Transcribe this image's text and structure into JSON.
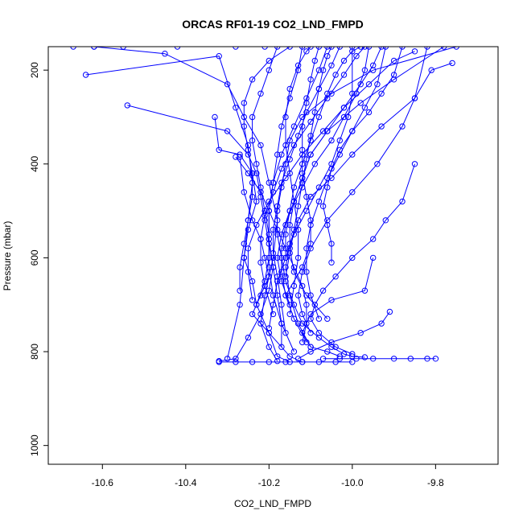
{
  "chart_data": {
    "type": "line",
    "title": "ORCAS RF01-19 CO2_LND_FMPD",
    "xlabel": "CO2_LND_FMPD",
    "ylabel": "Pressure (mbar)",
    "xlim": [
      -10.73,
      -9.65
    ],
    "ylim": [
      1040,
      150
    ],
    "y_axis_inverted": true,
    "x_ticks": [
      -10.6,
      -10.4,
      -10.2,
      -10.0,
      -9.8
    ],
    "x_tick_labels": [
      "-10.6",
      "-10.4",
      "-10.2",
      "-10.0",
      "-9.8"
    ],
    "y_ticks": [
      200,
      400,
      600,
      800,
      1000
    ],
    "y_tick_labels": [
      "200",
      "400",
      "600",
      "800",
      "1000"
    ],
    "marker": "open-circle",
    "grid": false,
    "legend": "none",
    "series_color": "#0000ff",
    "series": [
      {
        "x": [
          -10.67,
          -10.62,
          -10.55,
          -10.42,
          -10.28,
          -10.21
        ],
        "y": [
          150,
          150,
          150,
          150,
          150,
          150
        ]
      },
      {
        "x": [
          -10.62,
          -10.45,
          -10.3,
          -10.26,
          -10.22,
          -10.2,
          -10.18,
          -10.19,
          -10.21,
          -10.22,
          -10.2,
          -10.18
        ],
        "y": [
          150,
          165,
          230,
          300,
          360,
          440,
          520,
          600,
          680,
          740,
          790,
          820
        ]
      },
      {
        "x": [
          -10.64,
          -10.32,
          -10.28,
          -10.25,
          -10.24,
          -10.25,
          -10.26,
          -10.27,
          -10.3
        ],
        "y": [
          210,
          170,
          280,
          360,
          440,
          520,
          600,
          700,
          815
        ]
      },
      {
        "x": [
          -10.54,
          -10.3,
          -10.25,
          -10.23,
          -10.22,
          -10.21,
          -10.2,
          -10.19,
          -10.2,
          -10.22,
          -10.25,
          -10.28,
          -10.32
        ],
        "y": [
          275,
          330,
          380,
          420,
          470,
          520,
          570,
          620,
          670,
          720,
          770,
          815,
          820
        ]
      },
      {
        "x": [
          -10.33,
          -10.32,
          -10.27,
          -10.24,
          -10.23,
          -10.25,
          -10.26,
          -10.24,
          -10.23,
          -10.2,
          -10.18,
          -10.15
        ],
        "y": [
          300,
          370,
          380,
          420,
          480,
          540,
          600,
          650,
          700,
          760,
          810,
          822
        ]
      },
      {
        "x": [
          -10.27,
          -10.26,
          -10.24,
          -10.22,
          -10.21,
          -10.2,
          -10.22,
          -10.24,
          -10.2,
          -10.15,
          -10.12
        ],
        "y": [
          385,
          460,
          520,
          560,
          600,
          640,
          680,
          720,
          760,
          810,
          822
        ]
      },
      {
        "x": [
          -9.75,
          -9.95,
          -10.05,
          -10.12,
          -10.15,
          -10.16,
          -10.17,
          -10.18,
          -10.18,
          -10.17,
          -10.16,
          -10.14,
          -10.12,
          -10.08,
          -10.05,
          -10.02,
          -10.0,
          -9.97
        ],
        "y": [
          150,
          200,
          250,
          300,
          350,
          400,
          450,
          500,
          550,
          600,
          650,
          700,
          740,
          770,
          790,
          805,
          810,
          812
        ]
      },
      {
        "x": [
          -9.78,
          -9.9,
          -9.98,
          -10.06,
          -10.1,
          -10.12,
          -10.14,
          -10.16,
          -10.17,
          -10.17,
          -10.16,
          -10.14,
          -10.11
        ],
        "y": [
          150,
          220,
          270,
          330,
          380,
          430,
          480,
          530,
          580,
          630,
          680,
          730,
          780
        ]
      },
      {
        "x": [
          -9.82,
          -9.85,
          -9.93,
          -10.0,
          -10.05,
          -10.1,
          -10.13,
          -10.15,
          -10.16,
          -10.15,
          -10.13,
          -10.1
        ],
        "y": [
          150,
          260,
          320,
          380,
          430,
          470,
          520,
          570,
          620,
          680,
          740,
          790
        ]
      },
      {
        "x": [
          -9.85,
          -9.9,
          -9.96,
          -10.02,
          -10.06,
          -10.1,
          -10.12,
          -10.14,
          -10.15,
          -10.15,
          -10.14,
          -10.11,
          -10.06
        ],
        "y": [
          160,
          180,
          230,
          280,
          330,
          380,
          430,
          480,
          530,
          580,
          630,
          680,
          730
        ]
      },
      {
        "x": [
          -9.76,
          -9.81,
          -9.85,
          -9.88,
          -9.94,
          -10.0,
          -10.06,
          -10.1,
          -10.12,
          -10.13,
          -10.12,
          -10.1
        ],
        "y": [
          185,
          200,
          260,
          320,
          400,
          460,
          520,
          580,
          630,
          680,
          720,
          760
        ]
      },
      {
        "x": [
          -9.85,
          -9.88,
          -9.92,
          -9.95,
          -10.0,
          -10.04,
          -10.07,
          -10.09,
          -10.1,
          -10.08,
          -10.04,
          -10.0
        ],
        "y": [
          400,
          480,
          520,
          560,
          600,
          640,
          670,
          700,
          730,
          760,
          790,
          805
        ]
      },
      {
        "x": [
          -9.95,
          -9.97,
          -10.05,
          -10.1,
          -10.12,
          -10.1,
          -10.06,
          -10.03
        ],
        "y": [
          600,
          670,
          690,
          720,
          760,
          790,
          800,
          810
        ]
      },
      {
        "x": [
          -9.91,
          -9.93,
          -9.98,
          -10.05,
          -10.1,
          -10.13
        ],
        "y": [
          715,
          740,
          760,
          780,
          800,
          815
        ]
      },
      {
        "x": [
          -10.07,
          -10.03,
          -9.99,
          -9.95,
          -9.9,
          -9.86,
          -9.82,
          -9.8
        ],
        "y": [
          815,
          815,
          815,
          815,
          815,
          815,
          815,
          815
        ]
      },
      {
        "x": [
          -10.32,
          -10.28,
          -10.24,
          -10.2,
          -10.16,
          -10.12,
          -10.08,
          -10.04,
          -10.0
        ],
        "y": [
          822,
          822,
          822,
          822,
          822,
          822,
          822,
          822,
          822
        ]
      },
      {
        "x": [
          -10.12,
          -10.13,
          -10.15,
          -10.17,
          -10.18,
          -10.19,
          -10.2,
          -10.2,
          -10.2,
          -10.19,
          -10.17,
          -10.14
        ],
        "y": [
          150,
          200,
          260,
          320,
          380,
          440,
          500,
          560,
          620,
          680,
          740,
          800
        ]
      },
      {
        "x": [
          -10.03,
          -10.05,
          -10.08,
          -10.11,
          -10.13,
          -10.15,
          -10.17,
          -10.18,
          -10.19,
          -10.19,
          -10.18,
          -10.17,
          -10.16
        ],
        "y": [
          150,
          190,
          240,
          290,
          340,
          390,
          440,
          490,
          540,
          590,
          640,
          700,
          760
        ]
      },
      {
        "x": [
          -9.97,
          -9.99,
          -10.02,
          -10.06,
          -10.1,
          -10.14,
          -10.17,
          -10.19,
          -10.21,
          -10.22,
          -10.22,
          -10.21,
          -10.19
        ],
        "y": [
          150,
          170,
          210,
          260,
          310,
          360,
          410,
          460,
          510,
          560,
          610,
          660,
          720
        ]
      },
      {
        "x": [
          -9.93,
          -9.95,
          -9.98,
          -10.02,
          -10.07,
          -10.12,
          -10.16,
          -10.2,
          -10.23,
          -10.25,
          -10.25,
          -10.24
        ],
        "y": [
          150,
          190,
          230,
          280,
          330,
          380,
          430,
          480,
          530,
          580,
          630,
          690
        ]
      },
      {
        "x": [
          -10.08,
          -10.09,
          -10.1,
          -10.11,
          -10.12,
          -10.12,
          -10.12,
          -10.11,
          -10.1,
          -10.1,
          -10.12,
          -10.16
        ],
        "y": [
          150,
          180,
          220,
          270,
          320,
          370,
          420,
          470,
          520,
          570,
          620,
          680
        ]
      },
      {
        "x": [
          -10.18,
          -10.2,
          -10.22,
          -10.24,
          -10.24,
          -10.23,
          -10.22,
          -10.21,
          -10.2,
          -10.2,
          -10.21,
          -10.23
        ],
        "y": [
          150,
          200,
          250,
          300,
          350,
          400,
          450,
          500,
          550,
          600,
          650,
          700
        ]
      },
      {
        "x": [
          -9.88,
          -9.9,
          -9.93,
          -9.96,
          -10.0,
          -10.03,
          -10.05,
          -10.06,
          -10.07,
          -10.06,
          -10.05,
          -10.05
        ],
        "y": [
          150,
          210,
          250,
          290,
          330,
          370,
          410,
          450,
          490,
          530,
          570,
          610
        ]
      },
      {
        "x": [
          -10.15,
          -10.2,
          -10.24,
          -10.26,
          -10.26,
          -10.25,
          -10.24,
          -10.24,
          -10.25,
          -10.26,
          -10.27,
          -10.27
        ],
        "y": [
          150,
          180,
          220,
          270,
          320,
          370,
          420,
          470,
          520,
          570,
          620,
          670
        ]
      },
      {
        "x": [
          -10.28,
          -10.25,
          -10.22,
          -10.2,
          -10.18,
          -10.16,
          -10.14,
          -10.12,
          -10.11,
          -10.11,
          -10.12
        ],
        "y": [
          385,
          420,
          460,
          500,
          540,
          580,
          620,
          660,
          700,
          740,
          780
        ]
      },
      {
        "x": [
          -9.98,
          -10.0,
          -10.02,
          -10.04,
          -10.06,
          -10.08,
          -10.1,
          -10.12,
          -10.14,
          -10.15,
          -10.16,
          -10.16
        ],
        "y": [
          150,
          160,
          180,
          210,
          250,
          300,
          350,
          400,
          450,
          500,
          550,
          600
        ]
      },
      {
        "x": [
          -9.92,
          -9.94,
          -9.97,
          -10.0,
          -10.03,
          -10.06,
          -10.08,
          -10.1,
          -10.11,
          -10.11,
          -10.1,
          -10.08
        ],
        "y": [
          150,
          230,
          280,
          330,
          380,
          430,
          480,
          530,
          580,
          630,
          680,
          730
        ]
      },
      {
        "x": [
          -10.06,
          -10.08,
          -10.11,
          -10.14,
          -10.17,
          -10.19,
          -10.2,
          -10.2,
          -10.19,
          -10.18,
          -10.17,
          -10.17
        ],
        "y": [
          150,
          200,
          260,
          320,
          380,
          440,
          500,
          560,
          620,
          680,
          740,
          790
        ]
      },
      {
        "x": [
          -10.1,
          -10.11,
          -10.13,
          -10.15,
          -10.16,
          -10.16,
          -10.15,
          -10.14,
          -10.13,
          -10.13,
          -10.14,
          -10.15
        ],
        "y": [
          150,
          160,
          190,
          240,
          300,
          360,
          420,
          480,
          540,
          600,
          660,
          720
        ]
      },
      {
        "x": [
          -10.0,
          -10.0,
          -10.01,
          -10.03,
          -10.05,
          -10.08,
          -10.11,
          -10.14,
          -10.16,
          -10.18,
          -10.19,
          -10.2
        ],
        "y": [
          150,
          250,
          300,
          350,
          400,
          450,
          500,
          550,
          600,
          650,
          700,
          750
        ]
      },
      {
        "x": [
          -9.96,
          -9.97,
          -9.99,
          -10.02,
          -10.05,
          -10.09,
          -10.12,
          -10.15,
          -10.17,
          -10.18,
          -10.17,
          -10.15
        ],
        "y": [
          150,
          200,
          250,
          300,
          350,
          400,
          450,
          500,
          550,
          600,
          650,
          700
        ]
      },
      {
        "x": [
          -10.05,
          -10.06,
          -10.07,
          -10.08,
          -10.09,
          -10.1,
          -10.11,
          -10.12,
          -10.13,
          -10.14,
          -10.15,
          -10.16
        ],
        "y": [
          150,
          170,
          200,
          240,
          290,
          340,
          390,
          440,
          490,
          540,
          590,
          640
        ]
      }
    ]
  }
}
